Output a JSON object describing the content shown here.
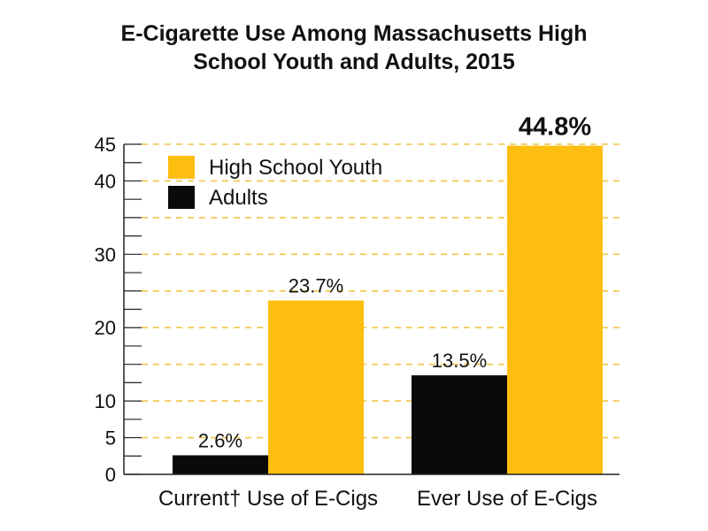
{
  "chart_data": {
    "type": "bar",
    "title_line1": "E-Cigarette Use Among Massachusetts High",
    "title_line2": "School Youth and Adults, 2015",
    "categories": [
      "Current† Use of E-Cigs",
      "Ever Use of E-Cigs"
    ],
    "series": [
      {
        "name": "Adults",
        "values": [
          2.6,
          13.5
        ],
        "labels": [
          "2.6%",
          "13.5%"
        ]
      },
      {
        "name": "High School Youth",
        "values": [
          23.7,
          44.8
        ],
        "labels": [
          "23.7%",
          "44.8%"
        ]
      }
    ],
    "ylim": [
      0,
      45
    ],
    "yticks": [
      0,
      5,
      10,
      20,
      30,
      40,
      45
    ],
    "grid": "dashed",
    "legend_position": "top-left",
    "legend": [
      "High School Youth",
      "Adults"
    ],
    "colors": {
      "High School Youth": "#FDBE10",
      "Adults": "#0a0a0a",
      "grid": "#F2C64A"
    }
  }
}
